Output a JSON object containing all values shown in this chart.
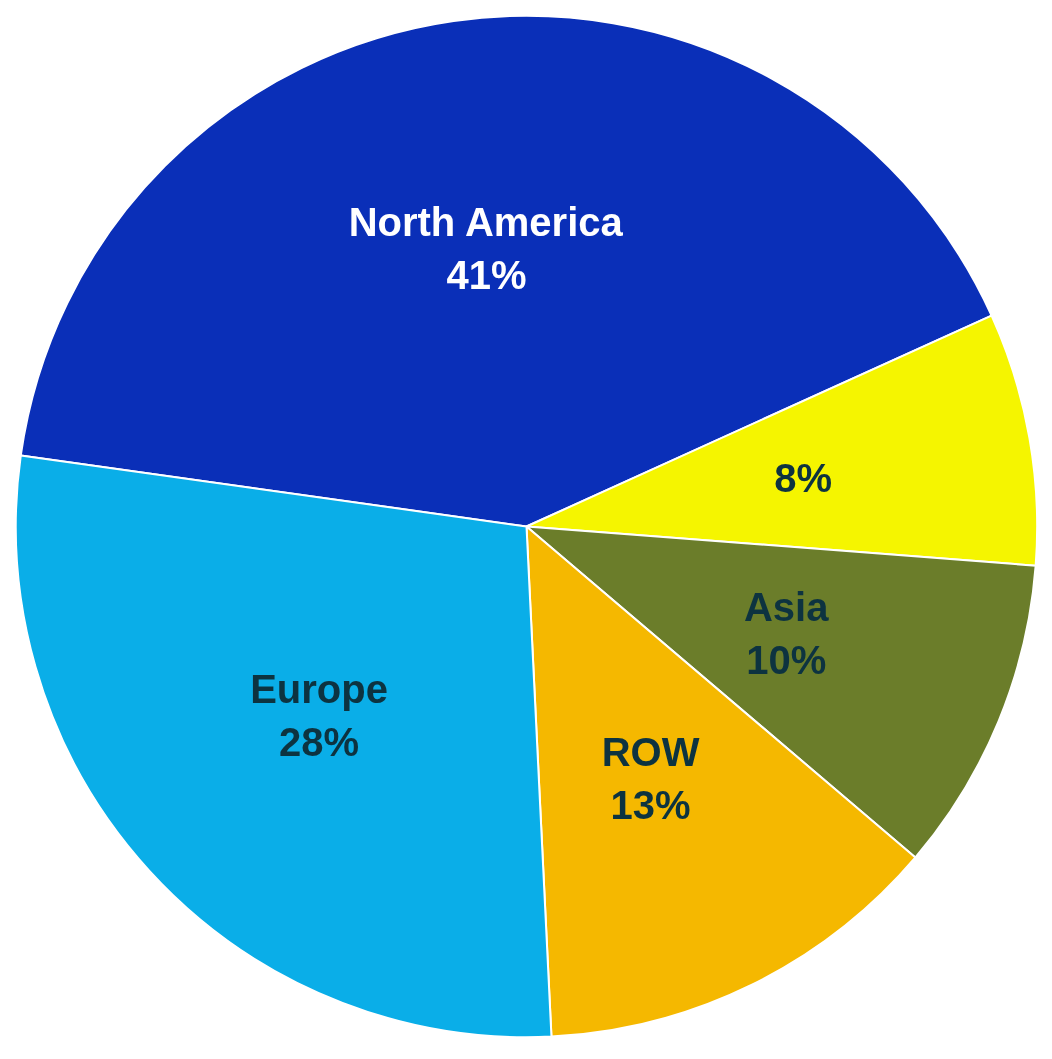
{
  "chart_data": {
    "type": "pie",
    "categories": [
      "North America",
      null,
      "Asia",
      "ROW",
      "Europe"
    ],
    "values": [
      41,
      8,
      10,
      13,
      28
    ],
    "value_labels": [
      "41%",
      "8%",
      "10%",
      "13%",
      "28%"
    ],
    "colors": [
      "#0a2fb8",
      "#f5f500",
      "#6b7d2a",
      "#f5b800",
      "#0aaee8"
    ]
  }
}
